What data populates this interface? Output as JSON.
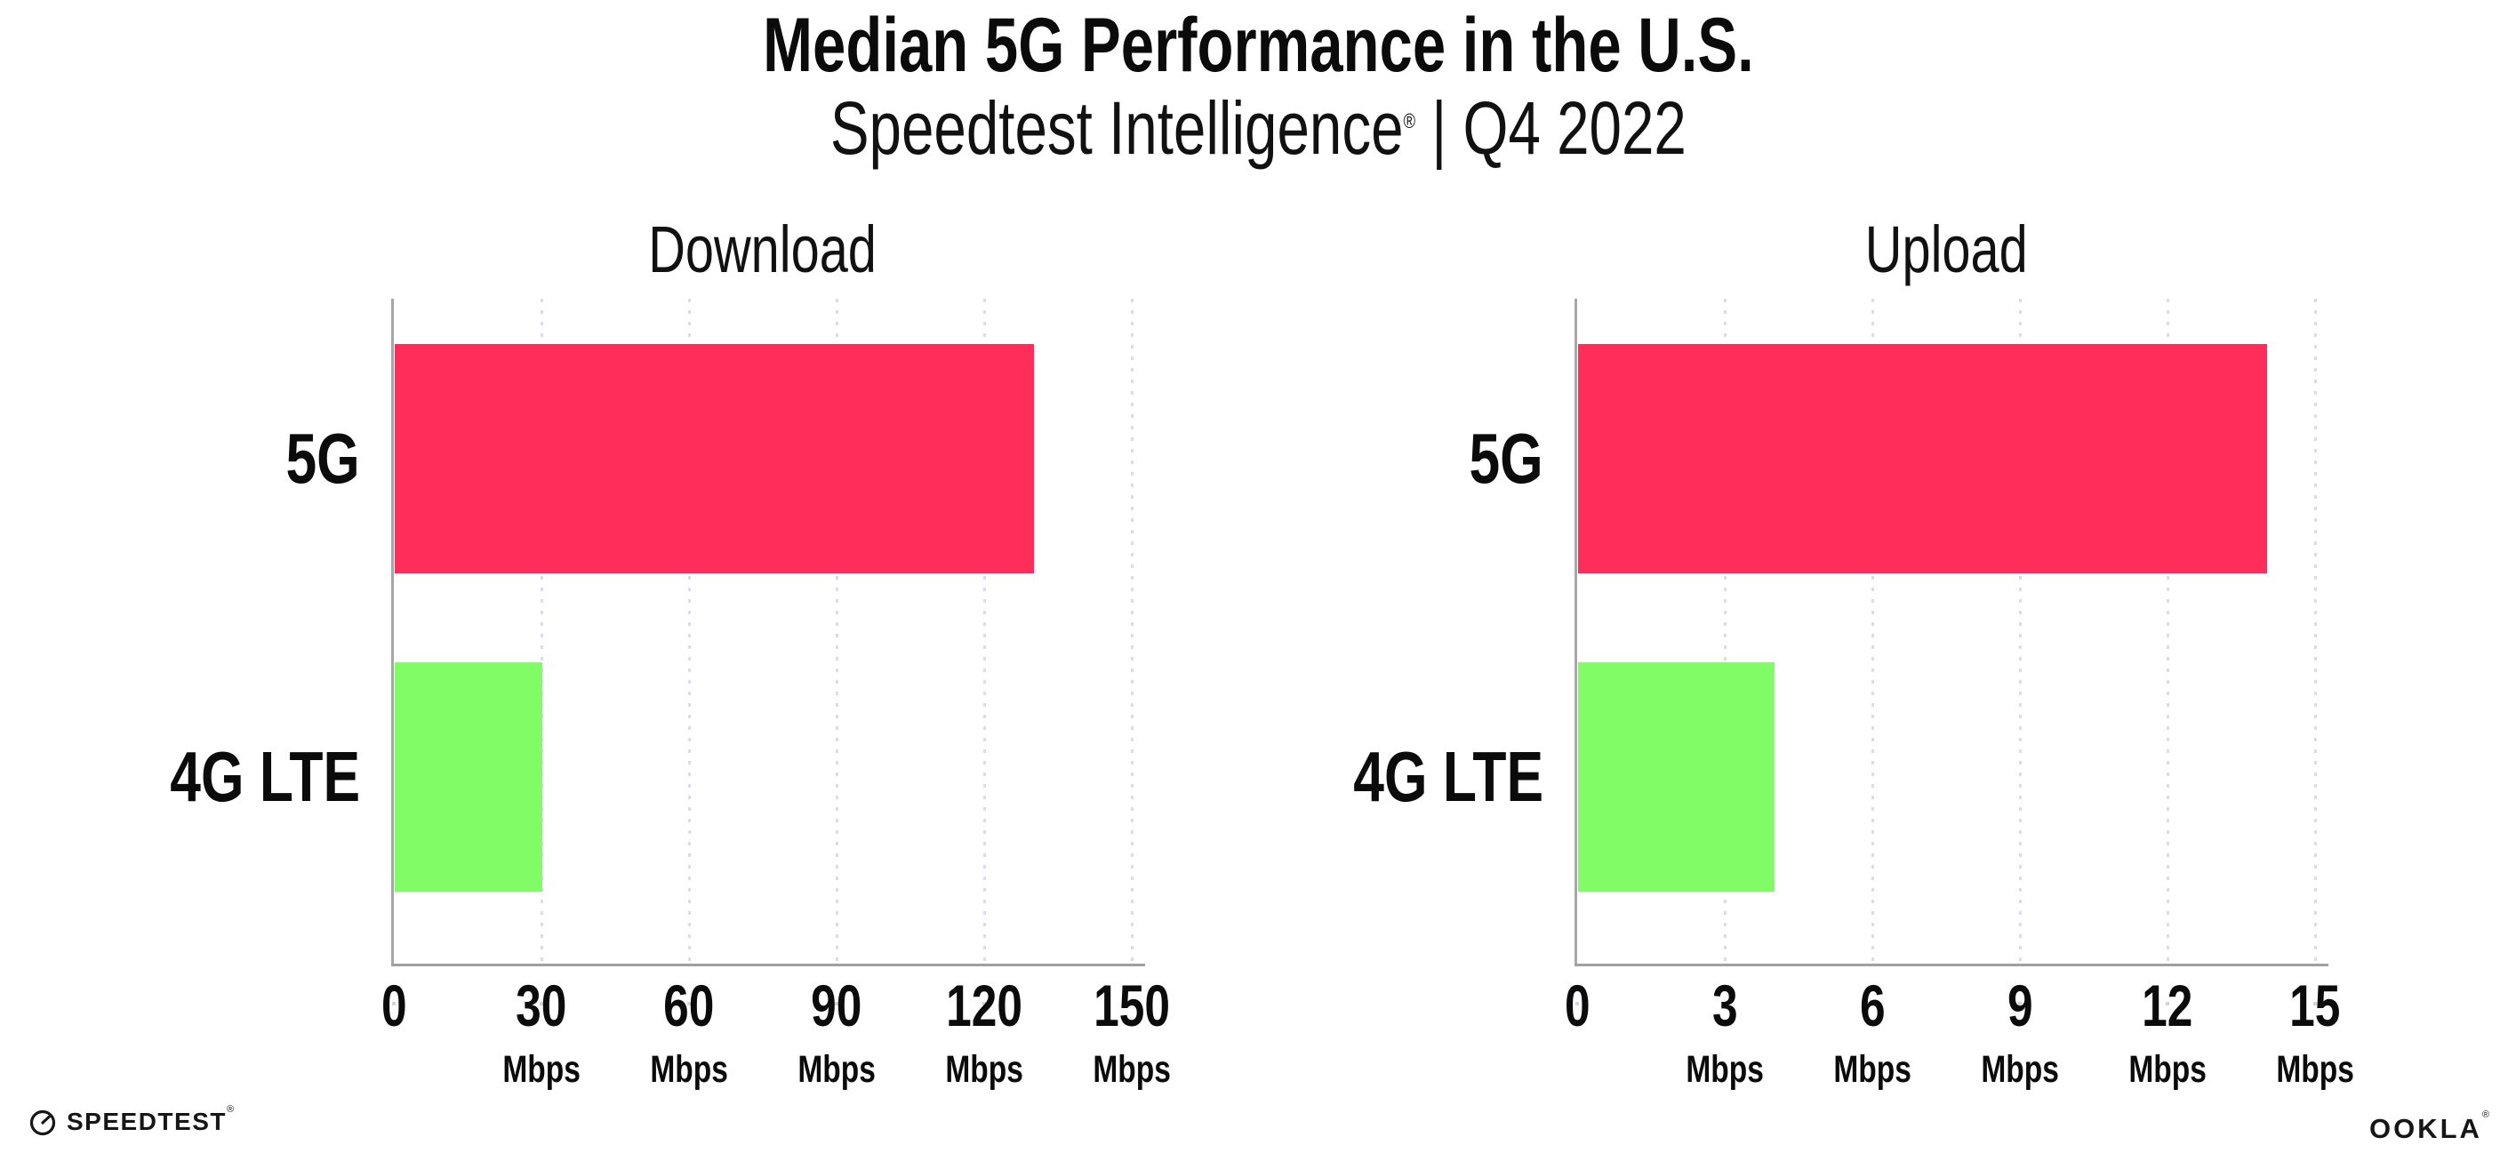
{
  "header": {
    "title": "Median 5G Performance in the U.S.",
    "subtitle_brand": "Speedtest Intelligence",
    "subtitle_mark": "®",
    "subtitle_rest": " | Q4 2022"
  },
  "footer": {
    "speedtest_label": "SPEEDTEST",
    "speedtest_mark": "®",
    "ookla_label": "OOKLA",
    "ookla_mark": "®"
  },
  "colors": {
    "bar_5g": "#ff2d5a",
    "bar_4g_lte": "#80fc66",
    "axis": "#a7a7a7",
    "gridline": "#dcdce8",
    "text": "#0b0b0b"
  },
  "chart_data": [
    {
      "type": "bar",
      "orientation": "horizontal",
      "title": "Download",
      "categories": [
        "5G",
        "4G LTE"
      ],
      "values": [
        130,
        30
      ],
      "unit": "Mbps",
      "xticks": [
        0,
        30,
        60,
        90,
        120,
        150
      ],
      "xlim": [
        0,
        150
      ],
      "bar_colors": [
        "#ff2d5a",
        "#80fc66"
      ],
      "grid": "vertical-dotted",
      "legend": "none"
    },
    {
      "type": "bar",
      "orientation": "horizontal",
      "title": "Upload",
      "categories": [
        "5G",
        "4G LTE"
      ],
      "values": [
        14,
        4
      ],
      "unit": "Mbps",
      "xticks": [
        0,
        3,
        6,
        9,
        12,
        15
      ],
      "xlim": [
        0,
        15
      ],
      "bar_colors": [
        "#ff2d5a",
        "#80fc66"
      ],
      "grid": "vertical-dotted",
      "legend": "none"
    }
  ]
}
